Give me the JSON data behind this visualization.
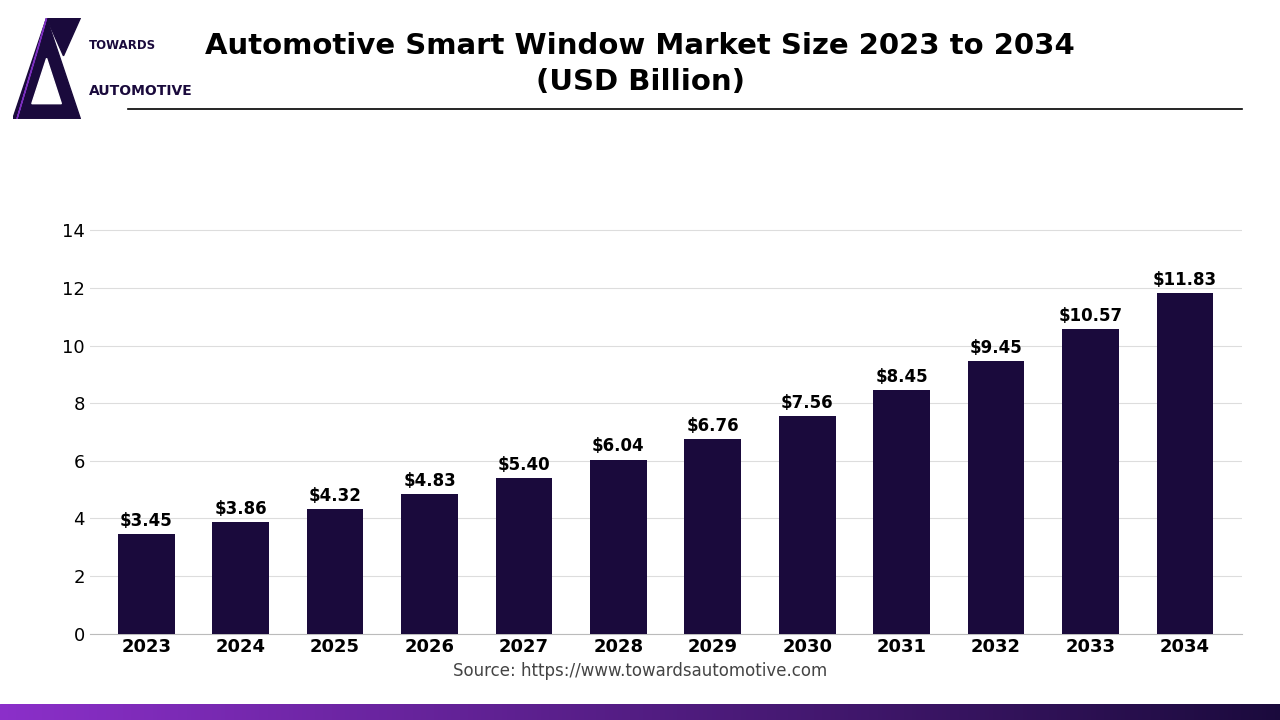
{
  "title": "Automotive Smart Window Market Size 2023 to 2034",
  "subtitle": "(USD Billion)",
  "source": "Source: https://www.towardsautomotive.com",
  "years": [
    2023,
    2024,
    2025,
    2026,
    2027,
    2028,
    2029,
    2030,
    2031,
    2032,
    2033,
    2034
  ],
  "values": [
    3.45,
    3.86,
    4.32,
    4.83,
    5.4,
    6.04,
    6.76,
    7.56,
    8.45,
    9.45,
    10.57,
    11.83
  ],
  "labels": [
    "$3.45",
    "$3.86",
    "$4.32",
    "$4.83",
    "$5.40",
    "$6.04",
    "$6.76",
    "$7.56",
    "$8.45",
    "$9.45",
    "$10.57",
    "$11.83"
  ],
  "bar_color": "#1a0a3c",
  "arrow_color": "#7b2fbe",
  "title_fontsize": 21,
  "subtitle_fontsize": 21,
  "label_fontsize": 12,
  "tick_fontsize": 13,
  "source_fontsize": 12,
  "ylim": [
    0,
    15
  ],
  "yticks": [
    0,
    2,
    4,
    6,
    8,
    10,
    12,
    14
  ],
  "background_color": "#ffffff",
  "logo_dark": "#1a0a3c",
  "logo_purple": "#7b2fbe",
  "bottom_grad_left": "#8b2fc9",
  "bottom_grad_right": "#1a0a3c"
}
